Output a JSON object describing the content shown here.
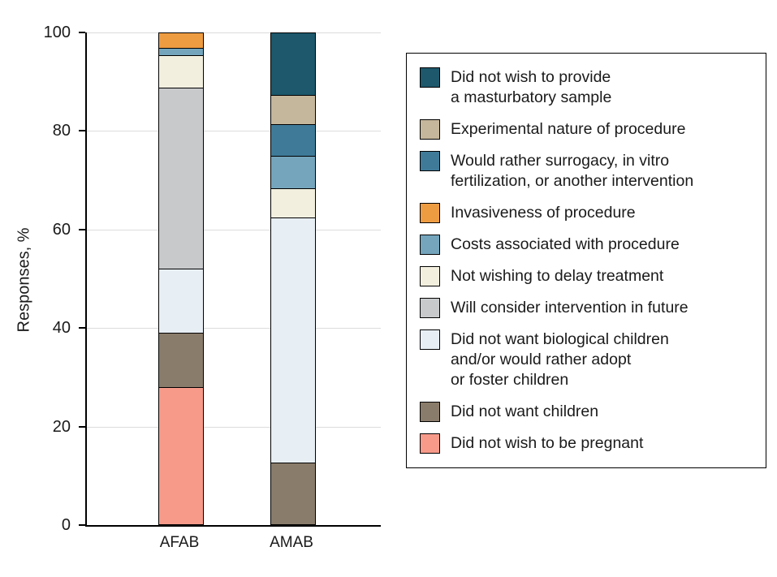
{
  "chart_data": {
    "type": "bar",
    "stacked": true,
    "title": "",
    "xlabel": "",
    "ylabel": "Responses, %",
    "ylim": [
      0,
      100
    ],
    "yticks": [
      0,
      20,
      40,
      60,
      80,
      100
    ],
    "gridlines": [
      20,
      40,
      60,
      80,
      100
    ],
    "grid": true,
    "legend_position": "right",
    "categories": [
      "AFAB",
      "AMAB"
    ],
    "series": [
      {
        "name": "Did not wish to provide a masturbatory sample",
        "label": "Did not wish to provide\na masturbatory sample",
        "color": "#1d586c",
        "values": [
          0,
          12.5
        ]
      },
      {
        "name": "Experimental nature of procedure",
        "label": "Experimental nature of procedure",
        "color": "#c5b79c",
        "values": [
          0,
          6
        ]
      },
      {
        "name": "Would rather surrogacy, in vitro fertilization, or another intervention",
        "label": "Would rather surrogacy, in vitro\nfertilization, or another intervention",
        "color": "#3f7b99",
        "values": [
          0,
          6.5
        ]
      },
      {
        "name": "Invasiveness of procedure",
        "label": "Invasiveness of procedure",
        "color": "#ee9c42",
        "values": [
          3,
          0
        ]
      },
      {
        "name": "Costs associated with procedure",
        "label": "Costs associated with procedure",
        "color": "#74a5bd",
        "values": [
          1.5,
          6.5
        ]
      },
      {
        "name": "Not wishing to delay treatment",
        "label": "Not wishing to delay treatment",
        "color": "#f2efdf",
        "values": [
          6.5,
          6
        ]
      },
      {
        "name": "Will consider intervention in future",
        "label": "Will consider intervention in future",
        "color": "#c7c9cb",
        "values": [
          37,
          0
        ]
      },
      {
        "name": "Did not want biological children and/or would rather adopt or foster children",
        "label": "Did not want biological children\nand/or would rather adopt\nor foster children",
        "color": "#e8eff4",
        "values": [
          13,
          50
        ]
      },
      {
        "name": "Did not want children",
        "label": "Did not want children",
        "color": "#8a7c6b",
        "values": [
          11,
          12.5
        ]
      },
      {
        "name": "Did not wish to be pregnant",
        "label": "Did not wish to be pregnant",
        "color": "#f79a8a",
        "values": [
          28,
          0
        ]
      }
    ],
    "stack_order_note": "series listed top-to-bottom as shown in legend and within each bar"
  }
}
